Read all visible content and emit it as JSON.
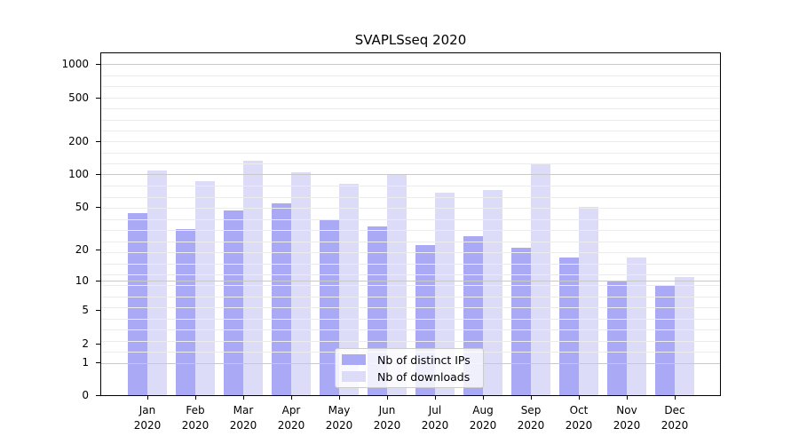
{
  "chart_data": {
    "type": "bar",
    "title": "SVAPLSseq 2020",
    "categories": [
      "Jan",
      "Feb",
      "Mar",
      "Apr",
      "May",
      "Jun",
      "Jul",
      "Aug",
      "Sep",
      "Oct",
      "Nov",
      "Dec"
    ],
    "x_tick_second_line": "2020",
    "series": [
      {
        "name": "Nb of distinct IPs",
        "color": "#a9a9f5",
        "values": [
          44,
          31,
          47,
          54,
          38,
          33,
          22,
          27,
          21,
          17,
          10,
          9
        ]
      },
      {
        "name": "Nb of downloads",
        "color": "#dcdcf8",
        "values": [
          109,
          87,
          133,
          104,
          82,
          100,
          68,
          72,
          125,
          50,
          17,
          11
        ]
      }
    ],
    "y_axis": {
      "ticks": [
        0,
        1,
        2,
        5,
        10,
        20,
        50,
        100,
        200,
        500,
        1000
      ],
      "scale": "log10(value+1)",
      "range": [
        0,
        1000
      ],
      "major_grid_values": [
        1,
        10,
        100,
        1000
      ]
    },
    "legend_position": "bottom-center",
    "grid": true,
    "colors": {
      "major_grid": "#c9c9c9",
      "minor_grid": "#ececec",
      "axis": "#000000",
      "text": "#000000",
      "background": "#ffffff"
    }
  }
}
